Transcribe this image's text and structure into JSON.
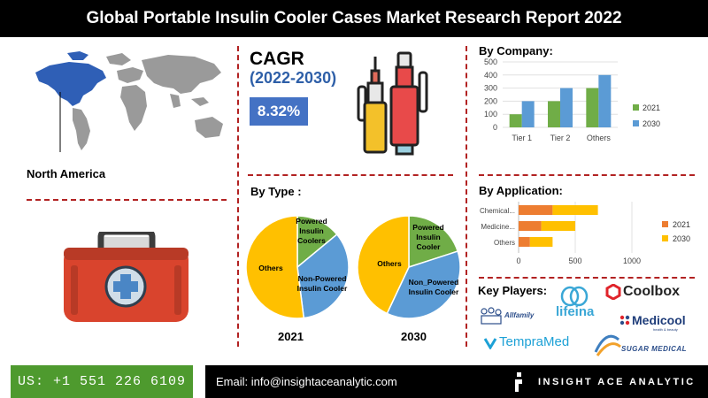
{
  "title": "Global Portable Insulin Cooler Cases Market Research Report 2022",
  "region": {
    "label": "North America",
    "icon": "world-map-icon"
  },
  "cagr": {
    "title": "CAGR",
    "years": "(2022-2030)",
    "value": "8.32%"
  },
  "by_company": {
    "title": "By Company:"
  },
  "by_type": {
    "title": "By Type :"
  },
  "by_application": {
    "title": "By Application:"
  },
  "key_players": {
    "title": "Key Players:",
    "logos": [
      "Coolbox",
      "lifeina",
      "Allfamily",
      "Medicool",
      "TempraMed",
      "SUGAR MEDICAL"
    ],
    "medicool_tagline": "health & beauty"
  },
  "footer": {
    "phone": "US: +1 551 226 6109",
    "email": "Email: info@insightaceanalytic.com",
    "brand": "INSIGHT ACE ANALYTIC"
  },
  "colors": {
    "c2021": "#70ad47",
    "c2030": "#5b9bd5",
    "app2021": "#ed7d31",
    "app2030": "#ffc000",
    "accent": "#b22222"
  },
  "chart_data": [
    {
      "id": "by_company",
      "type": "bar",
      "categories": [
        "Tier 1",
        "Tier 2",
        "Others"
      ],
      "series": [
        {
          "name": "2021",
          "values": [
            100,
            200,
            300
          ]
        },
        {
          "name": "2030",
          "values": [
            200,
            300,
            400
          ]
        }
      ],
      "ylim": [
        0,
        500
      ],
      "yticks": [
        0,
        100,
        200,
        300,
        400,
        500
      ],
      "legend": "right"
    },
    {
      "id": "by_type_2021",
      "type": "pie",
      "title": "2021",
      "labels": [
        "Powered Insulin Coolers",
        "Non-Powered Insulin Cooler",
        "Others"
      ],
      "values": [
        14,
        34,
        52
      ],
      "colors": [
        "#70ad47",
        "#5b9bd5",
        "#ffc000"
      ]
    },
    {
      "id": "by_type_2030",
      "type": "pie",
      "title": "2030",
      "labels": [
        "Powered Insulin Cooler",
        "Non_Powered Insulin Cooler",
        "Others"
      ],
      "values": [
        20,
        37,
        43
      ],
      "colors": [
        "#70ad47",
        "#5b9bd5",
        "#ffc000"
      ]
    },
    {
      "id": "by_application",
      "type": "bar",
      "orientation": "horizontal",
      "stacked": true,
      "categories": [
        "Chemical...",
        "Medicine...",
        "Others"
      ],
      "series": [
        {
          "name": "2021",
          "values": [
            300,
            200,
            100
          ]
        },
        {
          "name": "2030",
          "values": [
            400,
            300,
            200
          ]
        }
      ],
      "xlim": [
        0,
        1000
      ],
      "xticks": [
        0,
        500,
        1000
      ],
      "legend": "right"
    }
  ]
}
